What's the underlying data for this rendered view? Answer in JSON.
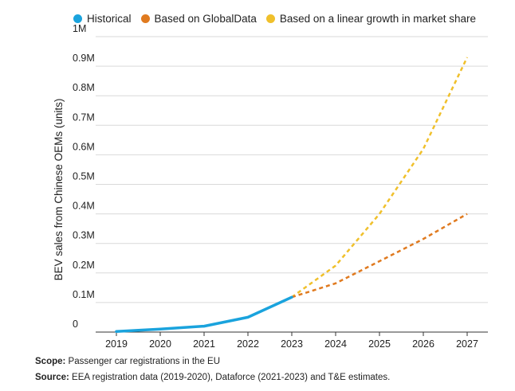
{
  "chart_data": {
    "type": "line",
    "ylabel": "BEV sales from Chinese OEMs (units)",
    "xlabel": "",
    "title": "",
    "x": [
      "2019",
      "2020",
      "2021",
      "2022",
      "2023",
      "2024",
      "2025",
      "2026",
      "2027"
    ],
    "ylim": [
      0,
      1000000
    ],
    "yticks": [
      0,
      100000,
      200000,
      300000,
      400000,
      500000,
      600000,
      700000,
      800000,
      900000,
      1000000
    ],
    "ytick_labels": [
      "0",
      "0.1M",
      "0.2M",
      "0.3M",
      "0.4M",
      "0.5M",
      "0.6M",
      "0.7M",
      "0.8M",
      "0.9M",
      "1M"
    ],
    "grid": "horizontal",
    "legend_position": "top",
    "series": [
      {
        "name": "Historical",
        "color": "#1aa3dd",
        "style": "solid",
        "x": [
          "2019",
          "2020",
          "2021",
          "2022",
          "2023"
        ],
        "values": [
          2000,
          10000,
          20000,
          50000,
          118000
        ]
      },
      {
        "name": "Based on GlobalData",
        "color": "#e07a1f",
        "style": "dashed",
        "x": [
          "2023",
          "2024",
          "2025",
          "2026",
          "2027"
        ],
        "values": [
          118000,
          165000,
          240000,
          315000,
          400000
        ]
      },
      {
        "name": "Based on a linear growth in market share",
        "color": "#f0c02b",
        "style": "dashed",
        "x": [
          "2023",
          "2024",
          "2025",
          "2026",
          "2027"
        ],
        "values": [
          118000,
          225000,
          400000,
          620000,
          930000
        ]
      }
    ]
  },
  "notes": {
    "scope_label": "Scope:",
    "scope_text": " Passenger car registrations in the EU",
    "source_label": "Source:",
    "source_text": " EEA registration data (2019-2020), Dataforce (2021-2023) and T&E estimates."
  }
}
